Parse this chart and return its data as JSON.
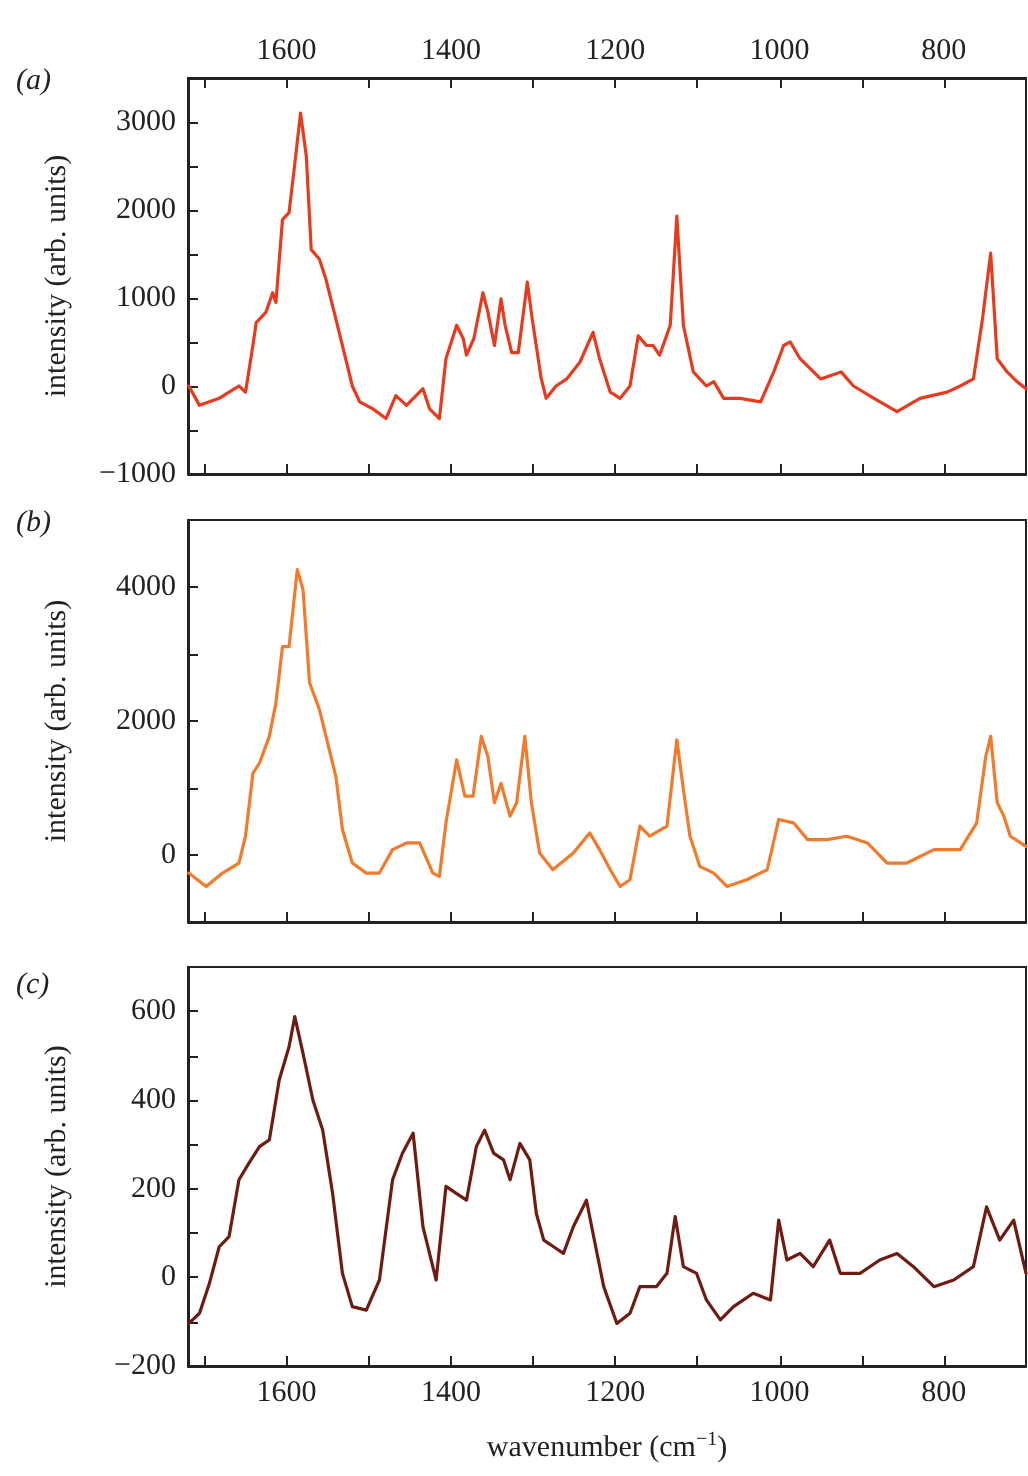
{
  "chart_data": [
    {
      "type": "line",
      "title": "(a)",
      "ylabel": "intensity (arb. units)",
      "xlim": [
        1720,
        700
      ],
      "xticks": [
        {
          "value": 1700,
          "label": null
        },
        1600,
        {
          "value": 1500,
          "label": null
        },
        1400,
        {
          "value": 1300,
          "label": null
        },
        1200,
        {
          "value": 1100,
          "label": null
        },
        1000,
        {
          "value": 900,
          "label": null
        },
        800
      ],
      "x2lim": [
        1720,
        700
      ],
      "x2ticks": [
        {
          "value": 1700,
          "label": null
        },
        1600,
        {
          "value": 1500,
          "label": null
        },
        1400,
        {
          "value": 1300,
          "label": null
        },
        1200,
        {
          "value": 1100,
          "label": null
        },
        1000,
        {
          "value": 900,
          "label": null
        },
        800
      ],
      "tick_labels": "y",
      "ylim": [
        -1000,
        3500
      ],
      "yticks": [
        -1000,
        {
          "value": -500,
          "label": null
        },
        0,
        {
          "value": 500,
          "label": null
        },
        1000,
        {
          "value": 1500,
          "label": null
        },
        2000,
        {
          "value": 2500,
          "label": null
        },
        3000
      ],
      "grid": false,
      "series": [
        {
          "color": "#e63b1e",
          "x": [
            1719,
            1706,
            1682,
            1670,
            1658,
            1650,
            1641,
            1637,
            1625,
            1617,
            1613,
            1605,
            1597,
            1589,
            1583,
            1576,
            1570,
            1560,
            1552,
            1540,
            1532,
            1520,
            1511,
            1495,
            1479,
            1467,
            1454,
            1434,
            1426,
            1414,
            1406,
            1393,
            1385,
            1381,
            1372,
            1361,
            1355,
            1347,
            1339,
            1334,
            1326,
            1318,
            1307,
            1301,
            1290,
            1284,
            1272,
            1259,
            1243,
            1227,
            1219,
            1206,
            1194,
            1182,
            1172,
            1162,
            1154,
            1146,
            1133,
            1125,
            1117,
            1105,
            1089,
            1080,
            1068,
            1048,
            1023,
            1007,
            995,
            987,
            975,
            950,
            925,
            910,
            885,
            857,
            829,
            796,
            780,
            764,
            753,
            743,
            735,
            723,
            711,
            700
          ],
          "values": [
            0,
            -220,
            -140,
            -70,
            0,
            -70,
            460,
            720,
            840,
            1060,
            950,
            1890,
            1970,
            2610,
            3100,
            2610,
            1550,
            1440,
            1210,
            760,
            460,
            0,
            -180,
            -260,
            -370,
            -110,
            -220,
            -30,
            -260,
            -370,
            310,
            690,
            540,
            350,
            540,
            1060,
            840,
            460,
            990,
            690,
            380,
            380,
            1180,
            760,
            80,
            -140,
            0,
            80,
            270,
            610,
            310,
            -70,
            -140,
            0,
            570,
            460,
            460,
            350,
            690,
            1930,
            690,
            160,
            0,
            50,
            -140,
            -140,
            -180,
            160,
            460,
            500,
            310,
            80,
            160,
            0,
            -140,
            -290,
            -140,
            -70,
            0,
            80,
            760,
            1510,
            310,
            160,
            50,
            -30
          ]
        }
      ]
    },
    {
      "type": "line",
      "title": "(b)",
      "ylabel": "intensity (arb. units)",
      "xlim": [
        1720,
        700
      ],
      "xticks": [
        {
          "value": 1700,
          "label": null
        },
        {
          "value": 1600,
          "label": null
        },
        {
          "value": 1500,
          "label": null
        },
        {
          "value": 1400,
          "label": null
        },
        {
          "value": 1300,
          "label": null
        },
        {
          "value": 1200,
          "label": null
        },
        {
          "value": 1100,
          "label": null
        },
        {
          "value": 1000,
          "label": null
        },
        {
          "value": 900,
          "label": null
        },
        {
          "value": 800,
          "label": null
        }
      ],
      "tick_labels": "y",
      "ylim": [
        -1000,
        5000
      ],
      "yticks": [
        {
          "value": -1000,
          "label": null
        },
        0,
        {
          "value": 1000,
          "label": null
        },
        2000,
        {
          "value": 3000,
          "label": null
        },
        4000
      ],
      "grid": false,
      "series": [
        {
          "color": "#f27a2c",
          "x": [
            1719,
            1698,
            1678,
            1658,
            1650,
            1641,
            1633,
            1621,
            1613,
            1605,
            1597,
            1587,
            1580,
            1572,
            1560,
            1548,
            1540,
            1532,
            1520,
            1503,
            1487,
            1471,
            1454,
            1438,
            1422,
            1414,
            1406,
            1393,
            1383,
            1373,
            1363,
            1355,
            1347,
            1339,
            1328,
            1320,
            1310,
            1302,
            1292,
            1276,
            1251,
            1231,
            1219,
            1206,
            1194,
            1182,
            1170,
            1158,
            1137,
            1125,
            1117,
            1109,
            1097,
            1080,
            1064,
            1040,
            1015,
            1001,
            983,
            966,
            942,
            918,
            893,
            869,
            845,
            812,
            780,
            760,
            749,
            743,
            735,
            727,
            719,
            700
          ],
          "values": [
            -270,
            -470,
            -270,
            -120,
            280,
            1220,
            1370,
            1770,
            2270,
            3110,
            3110,
            4260,
            3960,
            2570,
            2170,
            1570,
            1170,
            380,
            -120,
            -270,
            -270,
            80,
            180,
            180,
            -270,
            -320,
            480,
            1420,
            880,
            880,
            1770,
            1470,
            780,
            1070,
            580,
            780,
            1770,
            780,
            30,
            -220,
            30,
            330,
            80,
            -220,
            -470,
            -370,
            430,
            280,
            430,
            1720,
            980,
            280,
            -170,
            -270,
            -470,
            -370,
            -220,
            530,
            480,
            230,
            230,
            280,
            180,
            -120,
            -120,
            80,
            80,
            480,
            1470,
            1770,
            780,
            580,
            280,
            130
          ]
        }
      ]
    },
    {
      "type": "line",
      "title": "(c)",
      "ylabel": "intensity (arb. units)",
      "xlabel": "wavenumber (cm$^{−1}$)",
      "xlim": [
        1720,
        700
      ],
      "xticks": [
        {
          "value": 1700,
          "label": null
        },
        1600,
        {
          "value": 1500,
          "label": null
        },
        1400,
        {
          "value": 1300,
          "label": null
        },
        1200,
        {
          "value": 1100,
          "label": null
        },
        1000,
        {
          "value": 900,
          "label": null
        },
        800
      ],
      "ylim": [
        -200,
        700
      ],
      "yticks": [
        -200,
        {
          "value": -100,
          "label": null
        },
        0,
        {
          "value": 100,
          "label": null
        },
        200,
        {
          "value": 300,
          "label": null
        },
        400,
        {
          "value": 500,
          "label": null
        },
        600
      ],
      "grid": false,
      "series": [
        {
          "color": "#6e1c12",
          "x": [
            1719,
            1706,
            1694,
            1682,
            1670,
            1658,
            1646,
            1633,
            1621,
            1609,
            1597,
            1590,
            1580,
            1568,
            1556,
            1544,
            1532,
            1520,
            1503,
            1487,
            1471,
            1459,
            1446,
            1434,
            1418,
            1406,
            1393,
            1381,
            1369,
            1359,
            1348,
            1336,
            1328,
            1316,
            1304,
            1296,
            1287,
            1275,
            1263,
            1251,
            1235,
            1227,
            1214,
            1198,
            1182,
            1170,
            1150,
            1137,
            1127,
            1117,
            1101,
            1089,
            1072,
            1056,
            1032,
            1011,
            1001,
            991,
            975,
            959,
            939,
            926,
            902,
            878,
            857,
            837,
            812,
            788,
            764,
            748,
            732,
            715,
            700
          ],
          "values": [
            -104,
            -81,
            -14,
            69,
            92,
            220,
            257,
            295,
            310,
            445,
            520,
            588,
            505,
            400,
            332,
            189,
            9,
            -66,
            -74,
            -6,
            220,
            280,
            325,
            114,
            -6,
            205,
            189,
            174,
            295,
            332,
            280,
            265,
            220,
            302,
            265,
            144,
            84,
            69,
            54,
            114,
            174,
            99,
            -21,
            -104,
            -81,
            -21,
            -21,
            9,
            137,
            24,
            9,
            -51,
            -96,
            -66,
            -36,
            -51,
            129,
            39,
            54,
            24,
            84,
            9,
            9,
            39,
            54,
            24,
            -21,
            -6,
            24,
            159,
            84,
            129,
            9
          ]
        }
      ]
    }
  ]
}
